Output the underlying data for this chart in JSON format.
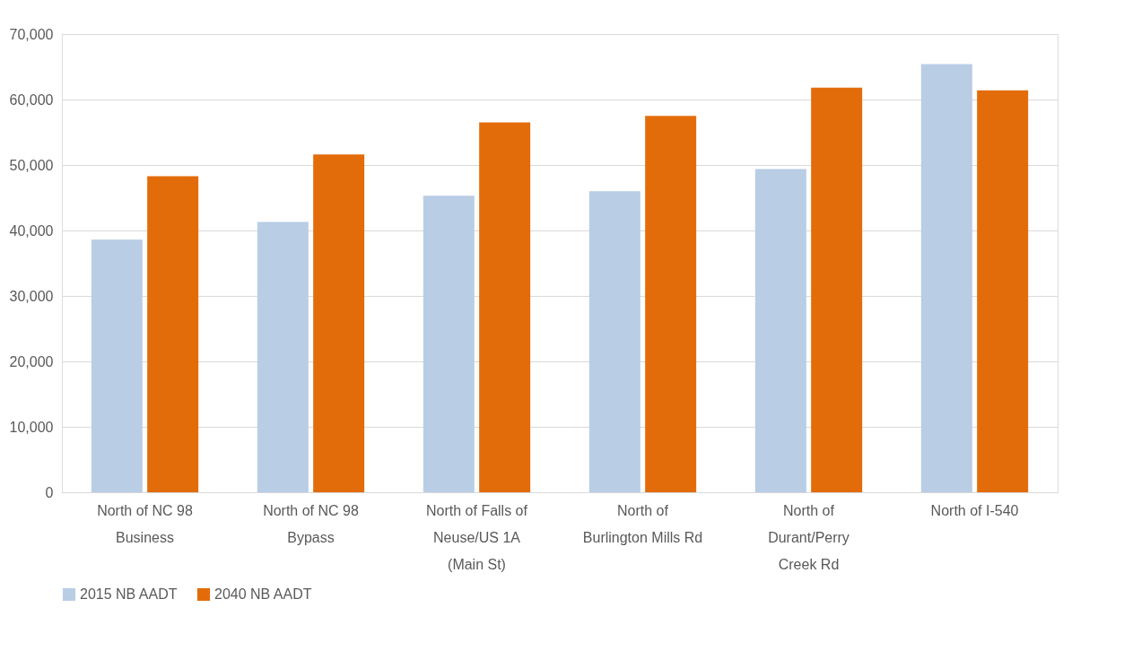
{
  "chart_data": {
    "type": "bar",
    "categories": [
      "North of NC 98\nBusiness",
      "North of NC 98\nBypass",
      "North of Falls of\nNeuse/US 1A\n(Main St)",
      "North of\nBurlington Mills Rd",
      "North of\nDurant/Perry\nCreek Rd",
      "North of I-540"
    ],
    "series": [
      {
        "name": "2015 NB AADT",
        "color": "#b9cde5",
        "values": [
          38600,
          41300,
          45300,
          46000,
          49400,
          65400
        ]
      },
      {
        "name": "2040 NB AADT",
        "color": "#e36c0a",
        "values": [
          48300,
          51600,
          56500,
          57500,
          61800,
          61400
        ]
      }
    ],
    "ylim": [
      0,
      70000
    ],
    "yticks": [
      {
        "value": 0,
        "label": "0"
      },
      {
        "value": 10000,
        "label": "10,000"
      },
      {
        "value": 20000,
        "label": "20,000"
      },
      {
        "value": 30000,
        "label": "30,000"
      },
      {
        "value": 40000,
        "label": "40,000"
      },
      {
        "value": 50000,
        "label": "50,000"
      },
      {
        "value": 60000,
        "label": "60,000"
      },
      {
        "value": 70000,
        "label": "70,000"
      }
    ],
    "grid": "y",
    "legend": "bottom"
  }
}
